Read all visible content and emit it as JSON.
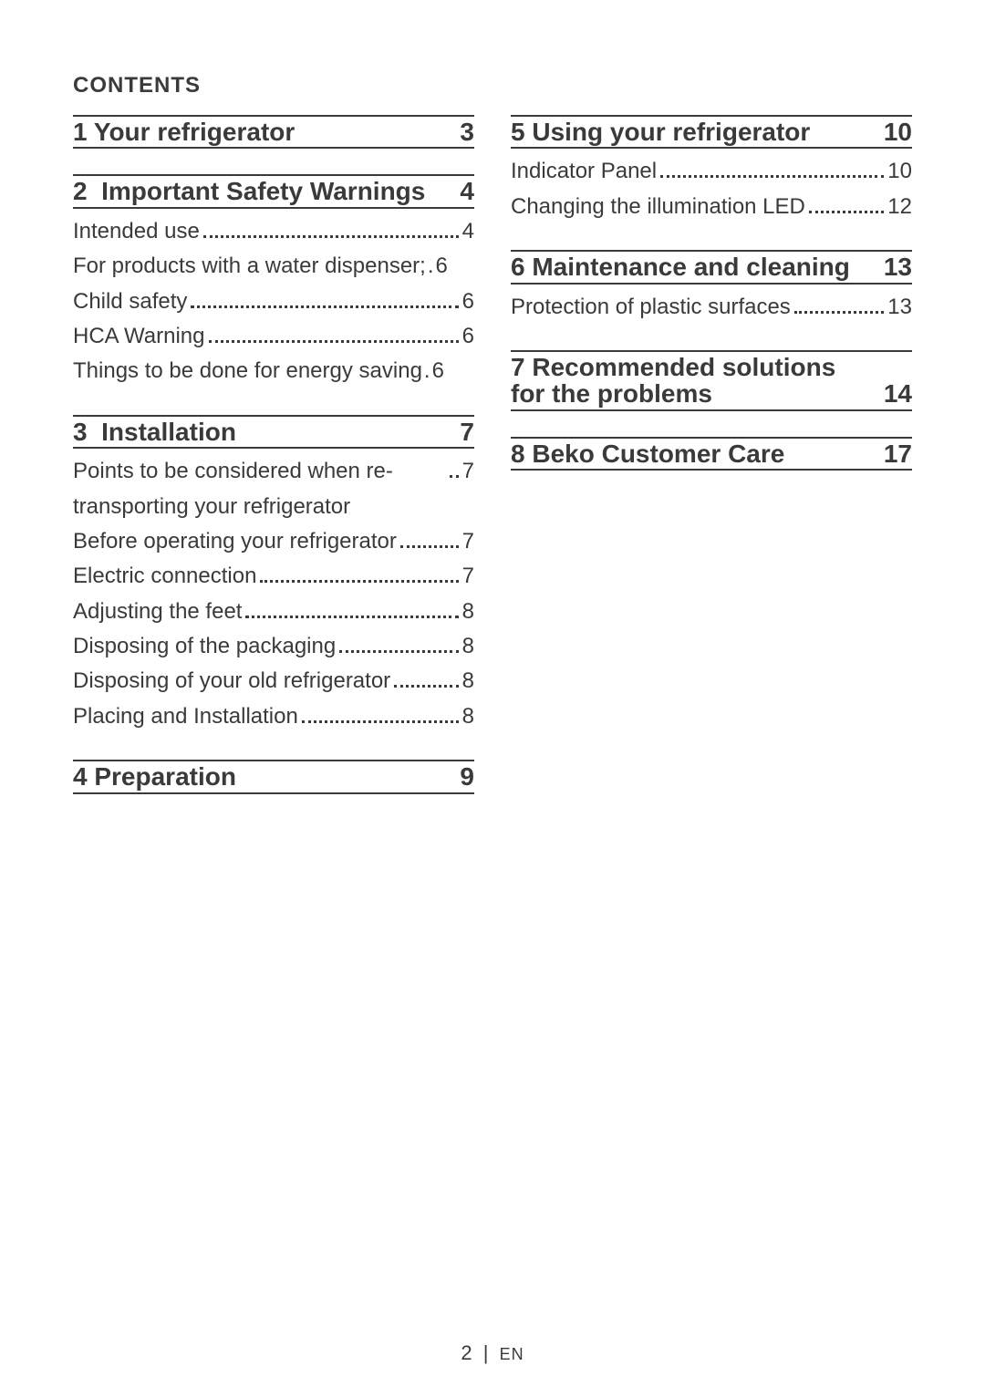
{
  "header": "CONTENTS",
  "text_color": "#3a3a3a",
  "background_color": "#ffffff",
  "footer": {
    "page_number": "2",
    "separator": "|",
    "language": "EN"
  },
  "left_column": [
    {
      "number": "1",
      "title": "Your refrigerator",
      "page": "3",
      "entries": []
    },
    {
      "number": "2",
      "title": "Important Safety Warnings",
      "title_prefix_spaced": true,
      "page": "4",
      "entries": [
        {
          "label": "Intended use",
          "page": "4"
        },
        {
          "label": "For products with a water dispenser;",
          "page": "6",
          "tight": true
        },
        {
          "label": "Child safety",
          "page": "6"
        },
        {
          "label": "HCA Warning",
          "page": "6"
        },
        {
          "label": "Things to be done for energy saving",
          "page": "6",
          "tight": true
        }
      ]
    },
    {
      "number": "3",
      "title": "Installation",
      "title_prefix_spaced": true,
      "page": "7",
      "entries": [
        {
          "label": "Points to be considered when re-transporting your refrigerator",
          "page": "7"
        },
        {
          "label": "Before operating your refrigerator",
          "page": "7"
        },
        {
          "label": "Electric connection",
          "page": "7"
        },
        {
          "label": "Adjusting the feet",
          "page": "8"
        },
        {
          "label": "Disposing of the packaging",
          "page": "8"
        },
        {
          "label": "Disposing of your old refrigerator",
          "page": "8"
        },
        {
          "label": "Placing and Installation",
          "page": "8"
        }
      ]
    },
    {
      "number": "4",
      "title": "Preparation",
      "page": "9",
      "entries": []
    }
  ],
  "right_column": [
    {
      "number": "5",
      "title": "Using your refrigerator",
      "page": "10",
      "entries": [
        {
          "label": "Indicator Panel",
          "page": "10"
        },
        {
          "label": "Changing the illumination LED",
          "page": "12"
        }
      ]
    },
    {
      "number": "6",
      "title": "Maintenance and cleaning",
      "page": "13",
      "entries": [
        {
          "label": "Protection of plastic surfaces",
          "page": "13"
        }
      ]
    },
    {
      "number": "7",
      "title": "Recommended solutions for the problems",
      "page": "14",
      "entries": []
    },
    {
      "number": "8",
      "title": "Beko Customer Care",
      "page": "17",
      "entries": []
    }
  ]
}
